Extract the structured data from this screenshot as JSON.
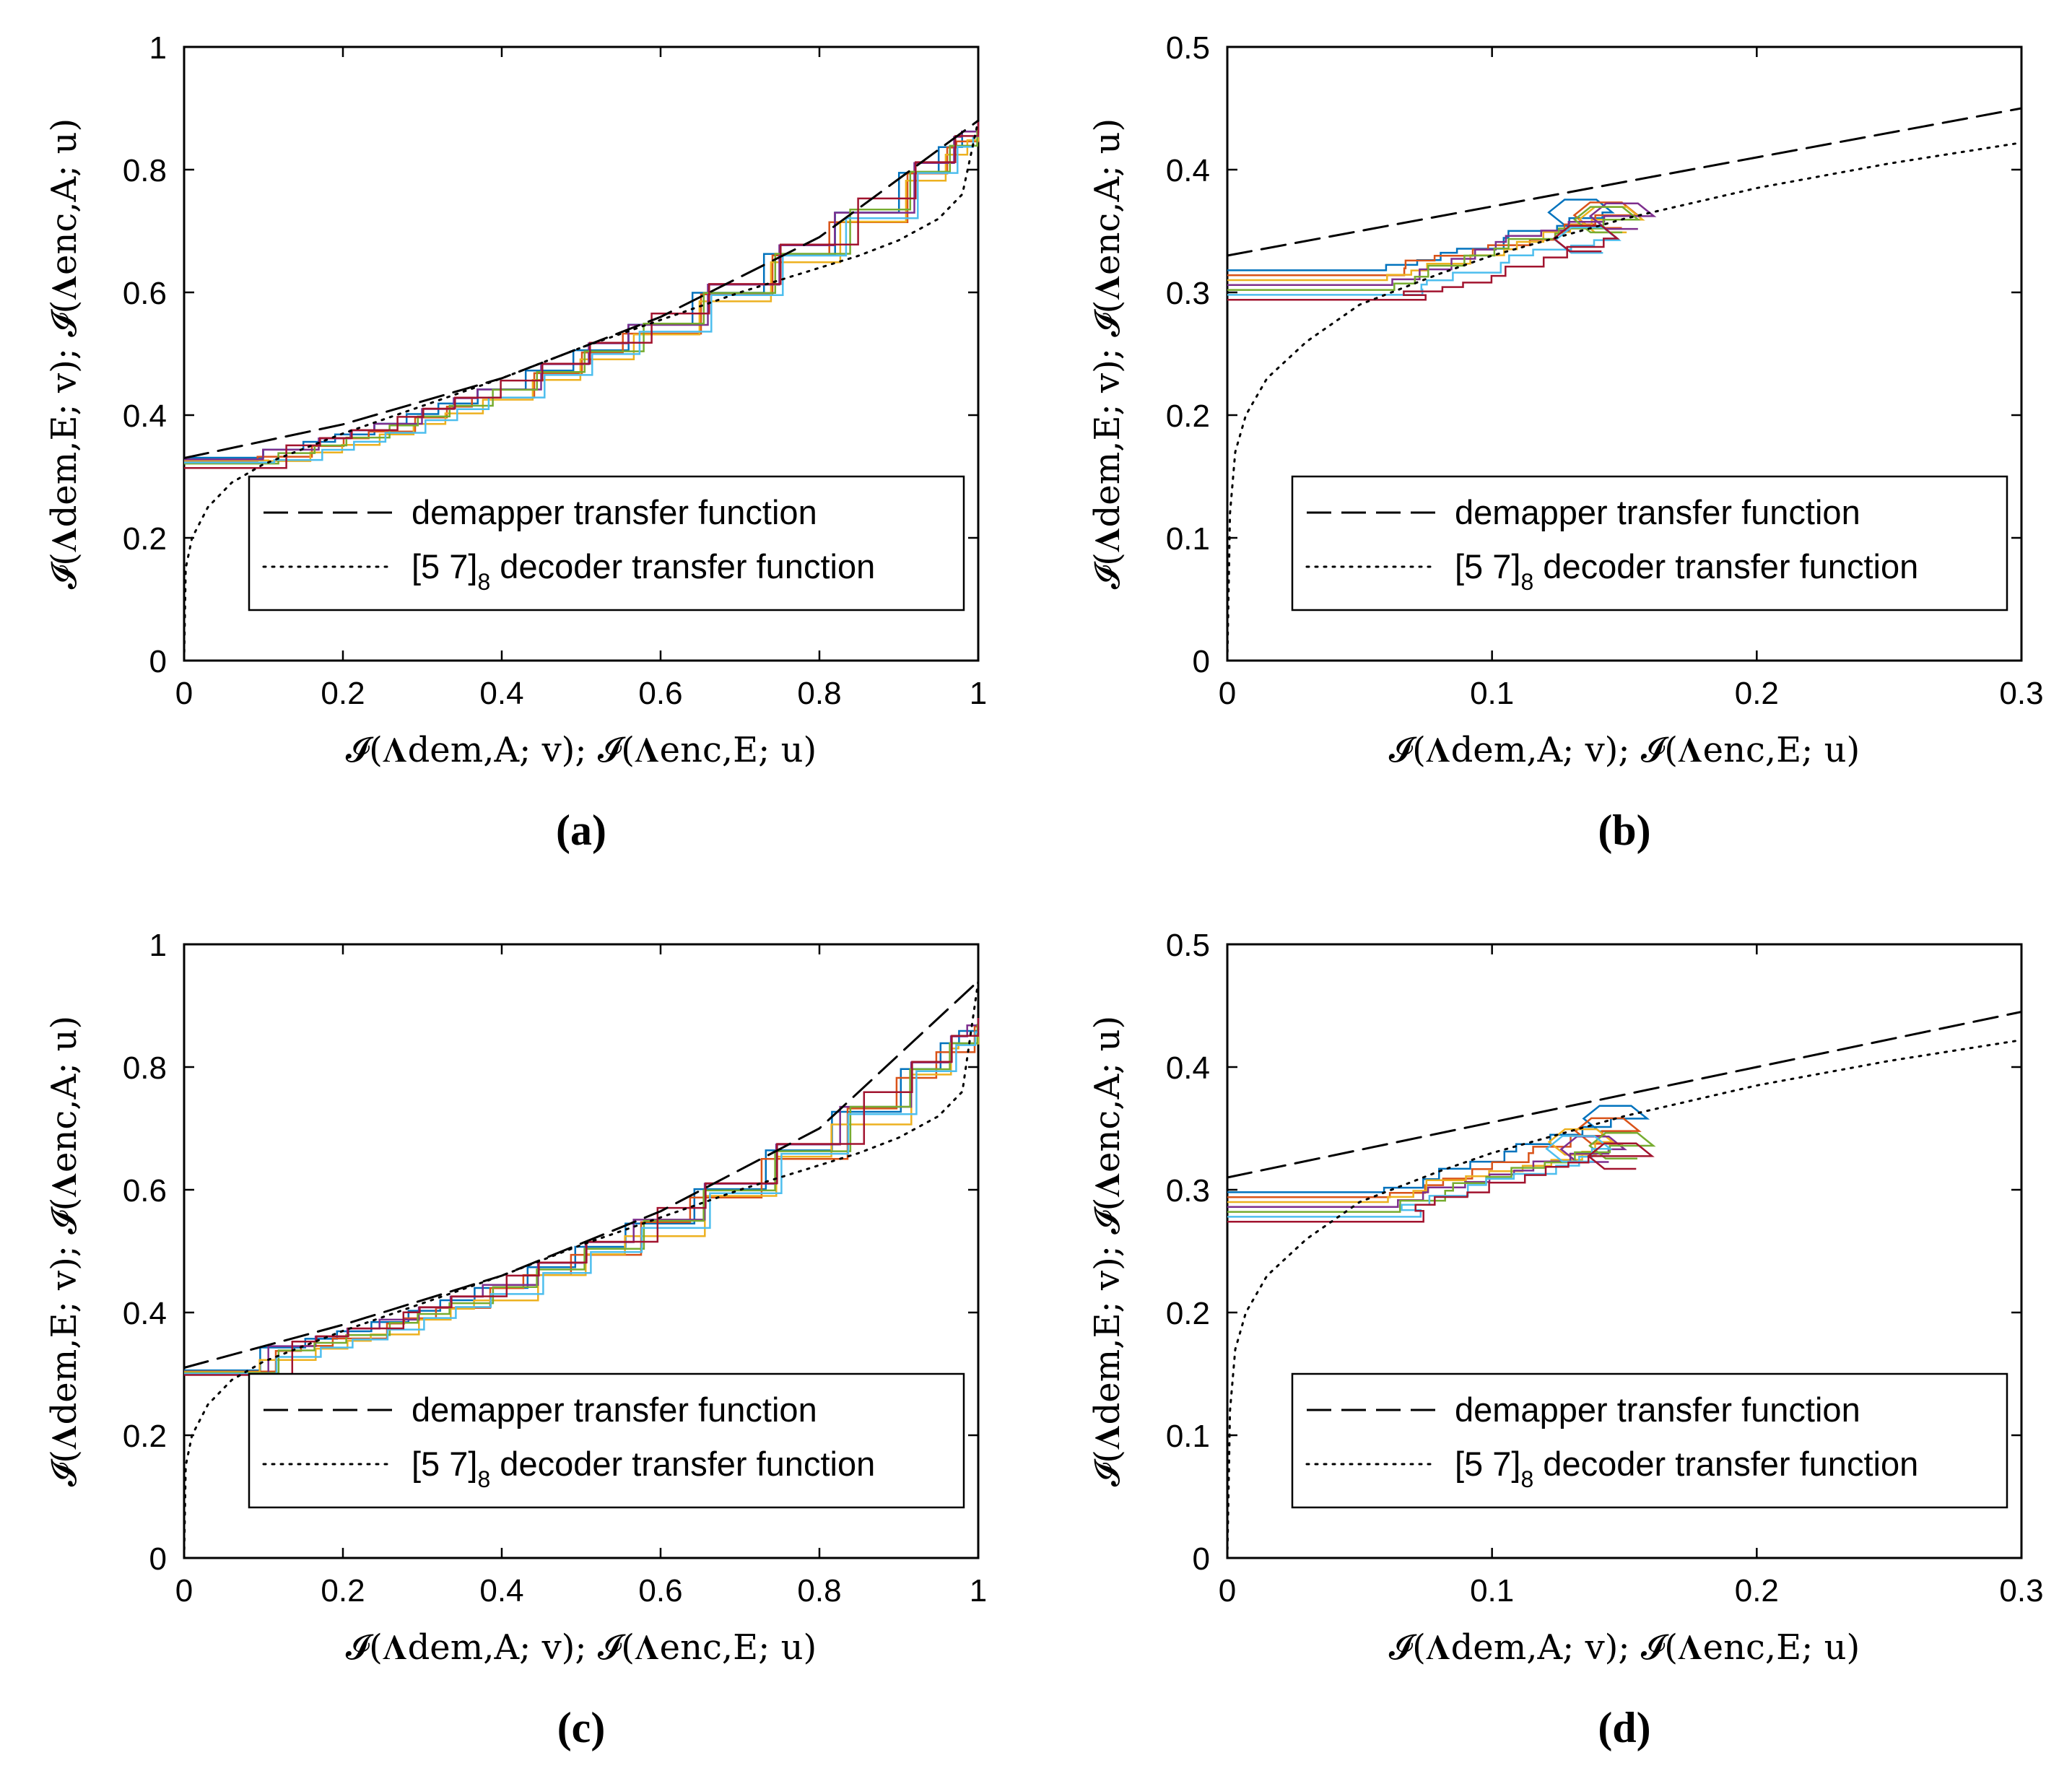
{
  "figure": {
    "panel_count": 4
  },
  "legend": {
    "demapper_label": "demapper transfer function",
    "decoder_label_prefix": "[5 7]",
    "decoder_label_sub": "8",
    "decoder_label_suffix": " decoder transfer function"
  },
  "axis_text": {
    "x_label": "𝓘(𝚲dem,A; v); 𝓘(𝚲enc,E; u)",
    "y_label": "𝓘(𝚲dem,E; v); 𝓘(𝚲enc,A; u)"
  },
  "colors": {
    "series": [
      "#0072BD",
      "#D95319",
      "#EDB120",
      "#7E2F8E",
      "#77AC30",
      "#4DBEEE",
      "#A2142F"
    ],
    "axis": "#000000"
  },
  "chart_data": [
    {
      "panel": "(a)",
      "type": "line",
      "xlim": [
        0,
        1
      ],
      "ylim": [
        0,
        1
      ],
      "xticks": [
        "0",
        "0.2",
        "0.4",
        "0.6",
        "0.8",
        "1"
      ],
      "yticks": [
        "0",
        "0.2",
        "0.4",
        "0.6",
        "0.8",
        "1"
      ],
      "series": [
        {
          "name": "demapper transfer function",
          "style": "dashed",
          "x": [
            0,
            0.2,
            0.4,
            0.6,
            0.8,
            1.0
          ],
          "y": [
            0.33,
            0.385,
            0.46,
            0.56,
            0.69,
            0.88
          ]
        },
        {
          "name": "[5 7]8 decoder transfer function",
          "style": "dotted",
          "x": [
            0,
            0.002,
            0.01,
            0.03,
            0.06,
            0.1,
            0.2,
            0.3,
            0.4,
            0.5,
            0.6,
            0.7,
            0.8,
            0.85,
            0.9,
            0.95,
            0.98,
            1.0
          ],
          "y": [
            0,
            0.15,
            0.2,
            0.25,
            0.29,
            0.32,
            0.37,
            0.415,
            0.46,
            0.51,
            0.555,
            0.6,
            0.64,
            0.66,
            0.685,
            0.72,
            0.76,
            0.88
          ]
        }
      ]
    },
    {
      "panel": "(b)",
      "type": "line",
      "xlim": [
        0,
        0.3
      ],
      "ylim": [
        0,
        0.5
      ],
      "xticks": [
        "0",
        "0.1",
        "0.2",
        "0.3"
      ],
      "yticks": [
        "0",
        "0.1",
        "0.2",
        "0.3",
        "0.4",
        "0.5"
      ],
      "series": [
        {
          "name": "demapper transfer function",
          "style": "dashed",
          "x": [
            0,
            0.1,
            0.2,
            0.3
          ],
          "y": [
            0.33,
            0.37,
            0.41,
            0.45
          ]
        },
        {
          "name": "[5 7]8 decoder transfer function",
          "style": "dotted",
          "x": [
            0,
            0.001,
            0.003,
            0.007,
            0.015,
            0.03,
            0.05,
            0.08,
            0.1,
            0.15,
            0.2,
            0.25,
            0.3
          ],
          "y": [
            0,
            0.12,
            0.17,
            0.2,
            0.23,
            0.26,
            0.29,
            0.315,
            0.33,
            0.36,
            0.385,
            0.405,
            0.422
          ]
        }
      ]
    },
    {
      "panel": "(c)",
      "type": "line",
      "xlim": [
        0,
        1
      ],
      "ylim": [
        0,
        1
      ],
      "xticks": [
        "0",
        "0.2",
        "0.4",
        "0.6",
        "0.8",
        "1"
      ],
      "yticks": [
        "0",
        "0.2",
        "0.4",
        "0.6",
        "0.8",
        "1"
      ],
      "series": [
        {
          "name": "demapper transfer function",
          "style": "dashed",
          "x": [
            0,
            0.2,
            0.4,
            0.6,
            0.8,
            1.0
          ],
          "y": [
            0.31,
            0.38,
            0.46,
            0.565,
            0.7,
            0.94
          ]
        },
        {
          "name": "[5 7]8 decoder transfer function",
          "style": "dotted",
          "x": [
            0,
            0.002,
            0.01,
            0.03,
            0.06,
            0.1,
            0.2,
            0.3,
            0.4,
            0.5,
            0.6,
            0.7,
            0.8,
            0.85,
            0.9,
            0.95,
            0.98,
            1.0
          ],
          "y": [
            0,
            0.15,
            0.2,
            0.25,
            0.29,
            0.32,
            0.37,
            0.415,
            0.46,
            0.51,
            0.555,
            0.6,
            0.64,
            0.66,
            0.685,
            0.72,
            0.76,
            0.94
          ]
        }
      ]
    },
    {
      "panel": "(d)",
      "type": "line",
      "xlim": [
        0,
        0.3
      ],
      "ylim": [
        0,
        0.5
      ],
      "xticks": [
        "0",
        "0.1",
        "0.2",
        "0.3"
      ],
      "yticks": [
        "0",
        "0.1",
        "0.2",
        "0.3",
        "0.4",
        "0.5"
      ],
      "series": [
        {
          "name": "demapper transfer function",
          "style": "dashed",
          "x": [
            0,
            0.1,
            0.2,
            0.3
          ],
          "y": [
            0.31,
            0.355,
            0.4,
            0.445
          ]
        },
        {
          "name": "[5 7]8 decoder transfer function",
          "style": "dotted",
          "x": [
            0,
            0.001,
            0.003,
            0.007,
            0.015,
            0.03,
            0.05,
            0.08,
            0.1,
            0.15,
            0.2,
            0.25,
            0.3
          ],
          "y": [
            0,
            0.12,
            0.17,
            0.2,
            0.23,
            0.26,
            0.29,
            0.315,
            0.33,
            0.36,
            0.385,
            0.405,
            0.422
          ]
        }
      ]
    }
  ]
}
